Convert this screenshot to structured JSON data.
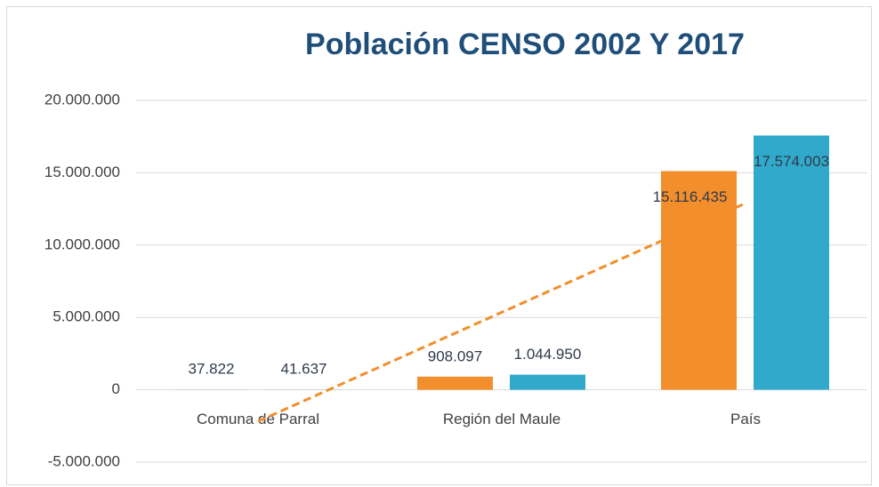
{
  "chart_data": {
    "type": "bar",
    "title": "Población CENSO 2002 Y 2017",
    "categories": [
      "Comuna de Parral",
      "Región del Maule",
      "País"
    ],
    "series": [
      {
        "color": "#f28e2b",
        "values": [
          37822,
          908097,
          15116435
        ],
        "value_labels": [
          "37.822",
          "908.097",
          "15.116.435"
        ],
        "trendline": "linear"
      },
      {
        "color": "#31a9cb",
        "values": [
          41637,
          1044950,
          17574003
        ],
        "value_labels": [
          "41.637",
          "1.044.950",
          "17.574.003"
        ]
      }
    ],
    "ylim": [
      -5000000,
      20000000
    ],
    "yticks": [
      {
        "value": -5000000,
        "label": "-5.000.000"
      },
      0,
      {
        "value": 5000000,
        "label": "5.000.000"
      },
      {
        "value": 10000000,
        "label": "10.000.000"
      },
      {
        "value": 15000000,
        "label": "15.000.000"
      },
      {
        "value": 20000000,
        "label": "20.000.000"
      }
    ],
    "grid": true
  }
}
